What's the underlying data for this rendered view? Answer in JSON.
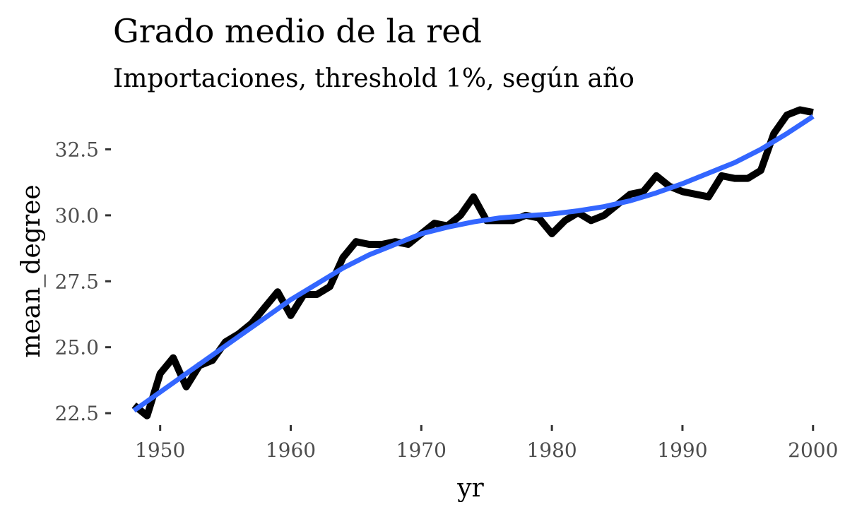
{
  "chart_data": {
    "type": "line",
    "title": "Grado medio de la red",
    "subtitle": "Importaciones, threshold 1%, según año",
    "xlabel": "yr",
    "ylabel": "mean_degree",
    "xlim": [
      1946.5,
      2000.5
    ],
    "ylim": [
      22.1,
      34.2
    ],
    "xticks": [
      1950,
      1960,
      1970,
      1980,
      1990,
      2000
    ],
    "yticks": [
      22.5,
      25.0,
      27.5,
      30.0,
      32.5
    ],
    "xtick_labels": [
      "1950",
      "1960",
      "1970",
      "1980",
      "1990",
      "2000"
    ],
    "ytick_labels": [
      "22.5",
      "25.0",
      "27.5",
      "30.0",
      "32.5"
    ],
    "grid": false,
    "legend": "none",
    "series": [
      {
        "kind": "data",
        "color": "#000000",
        "x": [
          1948,
          1949,
          1950,
          1951,
          1952,
          1953,
          1954,
          1955,
          1956,
          1957,
          1958,
          1959,
          1960,
          1961,
          1962,
          1963,
          1964,
          1965,
          1966,
          1967,
          1968,
          1969,
          1970,
          1971,
          1972,
          1973,
          1974,
          1975,
          1976,
          1977,
          1978,
          1979,
          1980,
          1981,
          1982,
          1983,
          1984,
          1985,
          1986,
          1987,
          1988,
          1989,
          1990,
          1991,
          1992,
          1993,
          1994,
          1995,
          1996,
          1997,
          1998,
          1999,
          2000
        ],
        "y": [
          22.8,
          22.4,
          24.0,
          24.6,
          23.5,
          24.3,
          24.5,
          25.2,
          25.5,
          25.9,
          26.5,
          27.1,
          26.2,
          27.0,
          27.0,
          27.3,
          28.4,
          29.0,
          28.9,
          28.9,
          29.0,
          28.9,
          29.3,
          29.7,
          29.6,
          30.0,
          30.7,
          29.8,
          29.8,
          29.8,
          30.0,
          29.9,
          29.3,
          29.8,
          30.1,
          29.8,
          30.0,
          30.4,
          30.8,
          30.9,
          31.5,
          31.1,
          30.9,
          30.8,
          30.7,
          31.5,
          31.4,
          31.4,
          31.7,
          33.1,
          33.8,
          34.0,
          33.9
        ]
      },
      {
        "kind": "smooth",
        "color": "#3366ff",
        "x": [
          1948,
          1950,
          1952,
          1954,
          1956,
          1958,
          1960,
          1962,
          1964,
          1966,
          1968,
          1970,
          1972,
          1974,
          1976,
          1978,
          1980,
          1982,
          1984,
          1986,
          1988,
          1990,
          1992,
          1994,
          1996,
          1998,
          2000
        ],
        "y": [
          22.6,
          23.3,
          24.0,
          24.7,
          25.4,
          26.1,
          26.8,
          27.4,
          28.0,
          28.5,
          28.9,
          29.3,
          29.55,
          29.75,
          29.9,
          29.98,
          30.05,
          30.17,
          30.33,
          30.55,
          30.85,
          31.2,
          31.6,
          32.0,
          32.5,
          33.1,
          33.75
        ]
      }
    ]
  }
}
